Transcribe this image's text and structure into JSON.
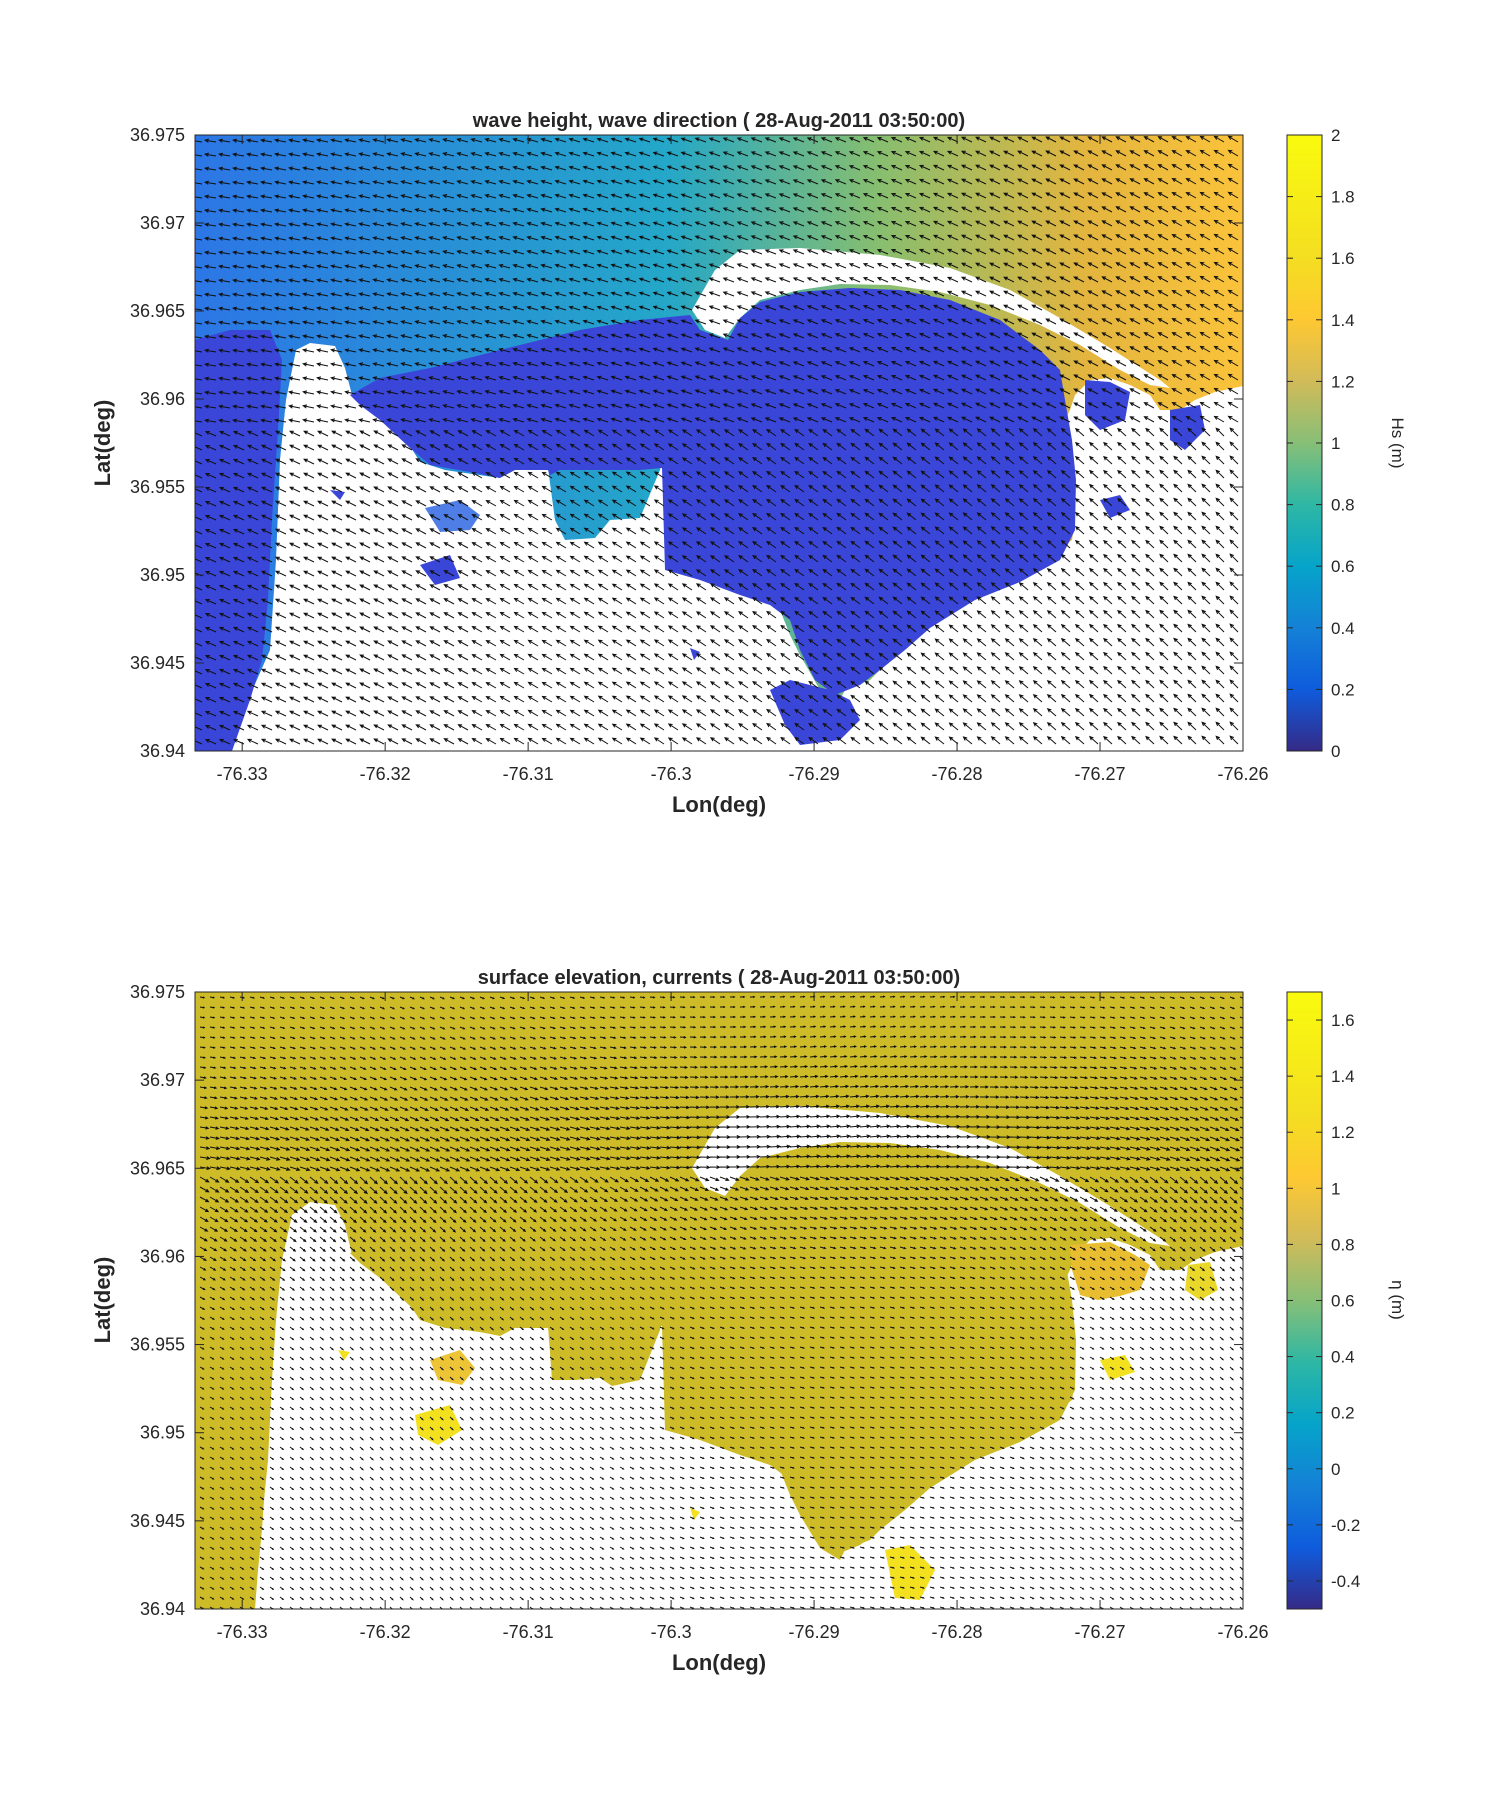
{
  "chart_data": [
    {
      "type": "heatmap",
      "title": "wave height, wave direction ( 28-Aug-2011 03:50:00)",
      "xlabel": "Lon(deg)",
      "ylabel": "Lat(deg)",
      "xlim": [
        -76.3333,
        -76.26
      ],
      "ylim": [
        36.94,
        36.975
      ],
      "xticks": [
        -76.33,
        -76.32,
        -76.31,
        -76.3,
        -76.29,
        -76.28,
        -76.27,
        -76.26
      ],
      "xtick_labels": [
        "-76.33",
        "-76.32",
        "-76.31",
        "-76.3",
        "-76.29",
        "-76.28",
        "-76.27",
        "-76.26"
      ],
      "yticks": [
        36.94,
        36.945,
        36.95,
        36.955,
        36.96,
        36.965,
        36.97,
        36.975
      ],
      "ytick_labels": [
        "36.94",
        "36.945",
        "36.95",
        "36.955",
        "36.96",
        "36.965",
        "36.97",
        "36.975"
      ],
      "colorbar": {
        "label": "Hs (m)",
        "range": [
          0,
          2
        ],
        "ticks": [
          0,
          0.2,
          0.4,
          0.6,
          0.8,
          1,
          1.2,
          1.4,
          1.6,
          1.8,
          2
        ],
        "tick_labels": [
          "0",
          "0.2",
          "0.4",
          "0.6",
          "0.8",
          "1",
          "1.2",
          "1.4",
          "1.6",
          "1.8",
          "2"
        ],
        "colormap": "parula"
      },
      "field": {
        "open_water_nw": 0.5,
        "channel_mid": 1.0,
        "open_water_ne": 1.55,
        "harbor_interior": 0.15,
        "western_channel": 0.15
      },
      "vectors": {
        "dominant_direction": "toward south-west",
        "length": "uniform"
      }
    },
    {
      "type": "heatmap",
      "title": "surface elevation, currents ( 28-Aug-2011 03:50:00)",
      "xlabel": "Lon(deg)",
      "ylabel": "Lat(deg)",
      "xlim": [
        -76.3333,
        -76.26
      ],
      "ylim": [
        36.94,
        36.975
      ],
      "xticks": [
        -76.33,
        -76.32,
        -76.31,
        -76.3,
        -76.29,
        -76.28,
        -76.27,
        -76.26
      ],
      "xtick_labels": [
        "-76.33",
        "-76.32",
        "-76.31",
        "-76.3",
        "-76.29",
        "-76.28",
        "-76.27",
        "-76.26"
      ],
      "yticks": [
        36.94,
        36.945,
        36.95,
        36.955,
        36.96,
        36.965,
        36.97,
        36.975
      ],
      "ytick_labels": [
        "36.94",
        "36.945",
        "36.95",
        "36.955",
        "36.96",
        "36.965",
        "36.97",
        "36.975"
      ],
      "colorbar": {
        "label": "η (m)",
        "range": [
          -0.5,
          1.7
        ],
        "ticks": [
          -0.4,
          -0.2,
          0,
          0.2,
          0.4,
          0.6,
          0.8,
          1,
          1.2,
          1.4,
          1.6
        ],
        "tick_labels": [
          "-0.4",
          "-0.2",
          "0",
          "0.2",
          "0.4",
          "0.6",
          "0.8",
          "1",
          "1.2",
          "1.4",
          "1.6"
        ],
        "colormap": "parula"
      },
      "field": {
        "water_surface": 1.2,
        "east_ponds": 1.35,
        "isolated_pools": 1.55
      },
      "vectors": {
        "dominant_direction": "toward south-east",
        "length": "variable, dense along barrier"
      }
    }
  ]
}
